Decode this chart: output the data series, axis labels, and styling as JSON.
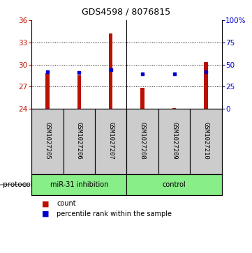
{
  "title": "GDS4598 / 8076815",
  "samples": [
    "GSM1027205",
    "GSM1027206",
    "GSM1027207",
    "GSM1027208",
    "GSM1027209",
    "GSM1027210"
  ],
  "red_values": [
    28.8,
    28.5,
    34.2,
    26.8,
    24.1,
    30.3
  ],
  "blue_values": [
    29.05,
    28.95,
    29.3,
    28.75,
    28.72,
    29.0
  ],
  "ylim": [
    24,
    36
  ],
  "yticks": [
    24,
    27,
    30,
    33,
    36
  ],
  "right_yticks": [
    0,
    25,
    50,
    75,
    100
  ],
  "bar_color": "#bb1100",
  "dot_color": "#0000cc",
  "base_value": 24,
  "bar_width": 0.12,
  "group1_label": "miR-31 inhibition",
  "group2_label": "control",
  "group_color": "#88ee88",
  "protocol_label": "protocol",
  "legend_count": "count",
  "legend_percentile": "percentile rank within the sample",
  "label_bg": "#cccccc",
  "title_fontsize": 9,
  "tick_fontsize": 7.5,
  "label_fontsize": 6.5,
  "group_fontsize": 7,
  "legend_fontsize": 7
}
